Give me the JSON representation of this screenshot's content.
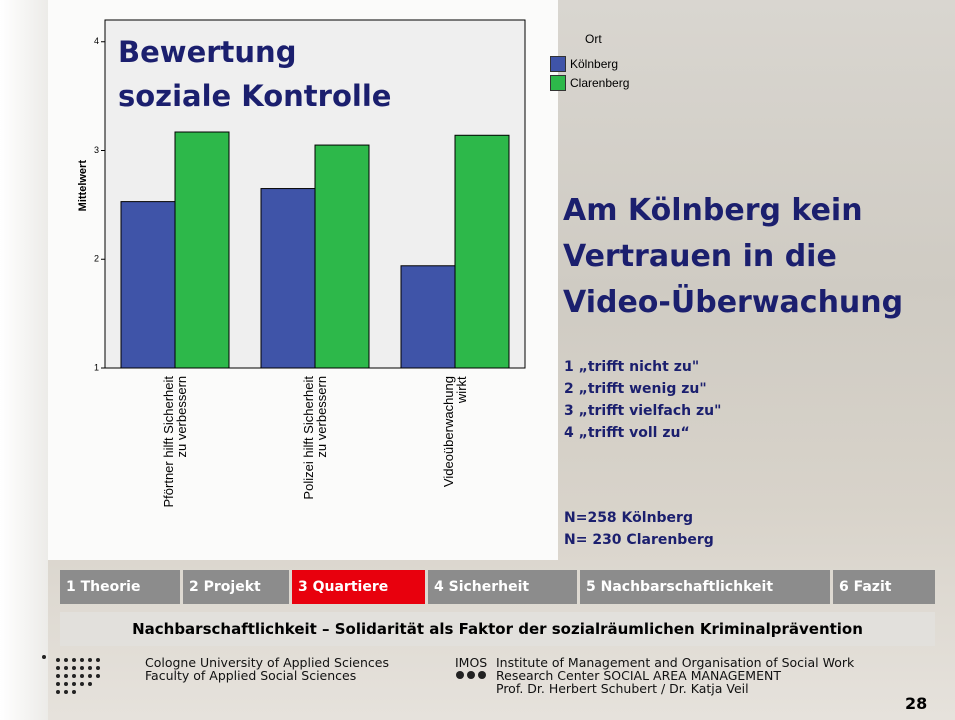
{
  "chart_data": {
    "type": "bar",
    "title": "Bewertung\nsoziale Kontrolle",
    "y_label": "Mittelwert",
    "legend_title": "Ort",
    "categories": [
      "Pförtner hilft Sicherheit\nzu verbessern",
      "Polizei hilft Sicherheit\nzu verbessern",
      "Videoüberwachung\nwirkt"
    ],
    "series": [
      {
        "name": "Kölnberg",
        "color": "#3f54a8",
        "values": [
          2.53,
          2.65,
          1.94
        ]
      },
      {
        "name": "Clarenberg",
        "color": "#2db84a",
        "values": [
          3.17,
          3.05,
          3.14
        ]
      }
    ],
    "ylim": [
      1,
      4.2
    ],
    "yticks": [
      1,
      2,
      3,
      4
    ]
  },
  "headline": "Am Kölnberg kein\nVertrauen in die\nVideo-Überwachung",
  "scale": [
    "1 „trifft nicht zu\"",
    "2 „trifft wenig zu\"",
    "3 „trifft vielfach zu\"",
    "4 „trifft voll zu“"
  ],
  "sample": [
    "N=258 Kölnberg",
    "N= 230 Clarenberg"
  ],
  "nav": [
    "1 Theorie",
    "2 Projekt",
    "3 Quartiere",
    "4  Sicherheit",
    "5  Nachbarschaftlichkeit",
    "6 Fazit"
  ],
  "subtitle": "Nachbarschaftlichkeit – Solidarität als Faktor der sozialräumlichen Kriminalprävention",
  "footer": {
    "left": "Cologne University of Applied Sciences\nFaculty of Applied Social Sciences",
    "imos": "IMOS",
    "right": "Institute of Management and Organisation of Social Work\nResearch Center   SOCIAL AREA  MANAGEMENT\nProf. Dr. Herbert Schubert / Dr. Katja Veil",
    "page": "28"
  }
}
